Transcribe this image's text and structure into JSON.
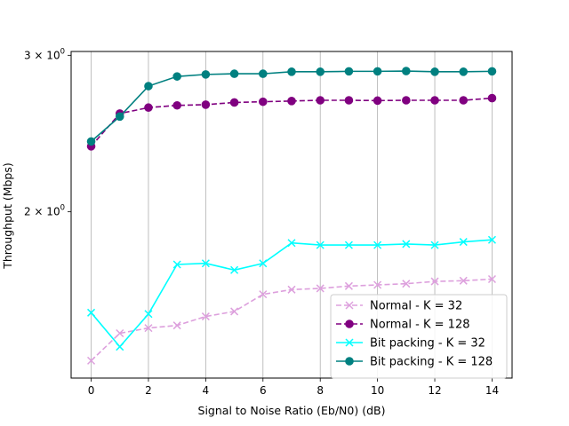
{
  "chart_data": {
    "type": "line",
    "title": "",
    "xlabel": "Signal to Noise Ratio (Eb/N0) (dB)",
    "ylabel": "Throughput (Mbps)",
    "xlim": [
      -0.7,
      14.7
    ],
    "ylim": [
      1.3,
      3.03
    ],
    "yscale": "log",
    "xticks": [
      0,
      2,
      4,
      6,
      8,
      10,
      12,
      14
    ],
    "yticks": [
      {
        "value": 2,
        "base": "2",
        "times": "×",
        "ten": "10",
        "exp": "0"
      },
      {
        "value": 3,
        "base": "3",
        "times": "×",
        "ten": "10",
        "exp": "0"
      }
    ],
    "grid": "vertical",
    "legend_position": "lower-right",
    "x": [
      0,
      1,
      2,
      3,
      4,
      5,
      6,
      7,
      8,
      9,
      10,
      11,
      12,
      13,
      14
    ],
    "series": [
      {
        "name": "Normal - K = 32",
        "color": "#dda0dd",
        "dash": "dashed",
        "marker": "x",
        "values": [
          1.36,
          1.46,
          1.48,
          1.49,
          1.525,
          1.545,
          1.615,
          1.635,
          1.64,
          1.65,
          1.655,
          1.66,
          1.67,
          1.673,
          1.68
        ]
      },
      {
        "name": "Normal - K = 128",
        "color": "#800080",
        "dash": "dashed",
        "marker": "circle",
        "values": [
          2.37,
          2.58,
          2.62,
          2.635,
          2.64,
          2.655,
          2.66,
          2.665,
          2.67,
          2.67,
          2.668,
          2.67,
          2.67,
          2.67,
          2.685
        ]
      },
      {
        "name": "Bit packing - K = 32",
        "color": "#00ffff",
        "dash": "solid",
        "marker": "x",
        "values": [
          1.54,
          1.41,
          1.535,
          1.745,
          1.75,
          1.72,
          1.75,
          1.845,
          1.835,
          1.835,
          1.835,
          1.84,
          1.835,
          1.85,
          1.86
        ]
      },
      {
        "name": "Bit packing - K = 128",
        "color": "#008080",
        "dash": "solid",
        "marker": "circle",
        "values": [
          2.4,
          2.56,
          2.77,
          2.84,
          2.855,
          2.86,
          2.86,
          2.875,
          2.875,
          2.878,
          2.878,
          2.88,
          2.875,
          2.875,
          2.878
        ]
      }
    ]
  }
}
